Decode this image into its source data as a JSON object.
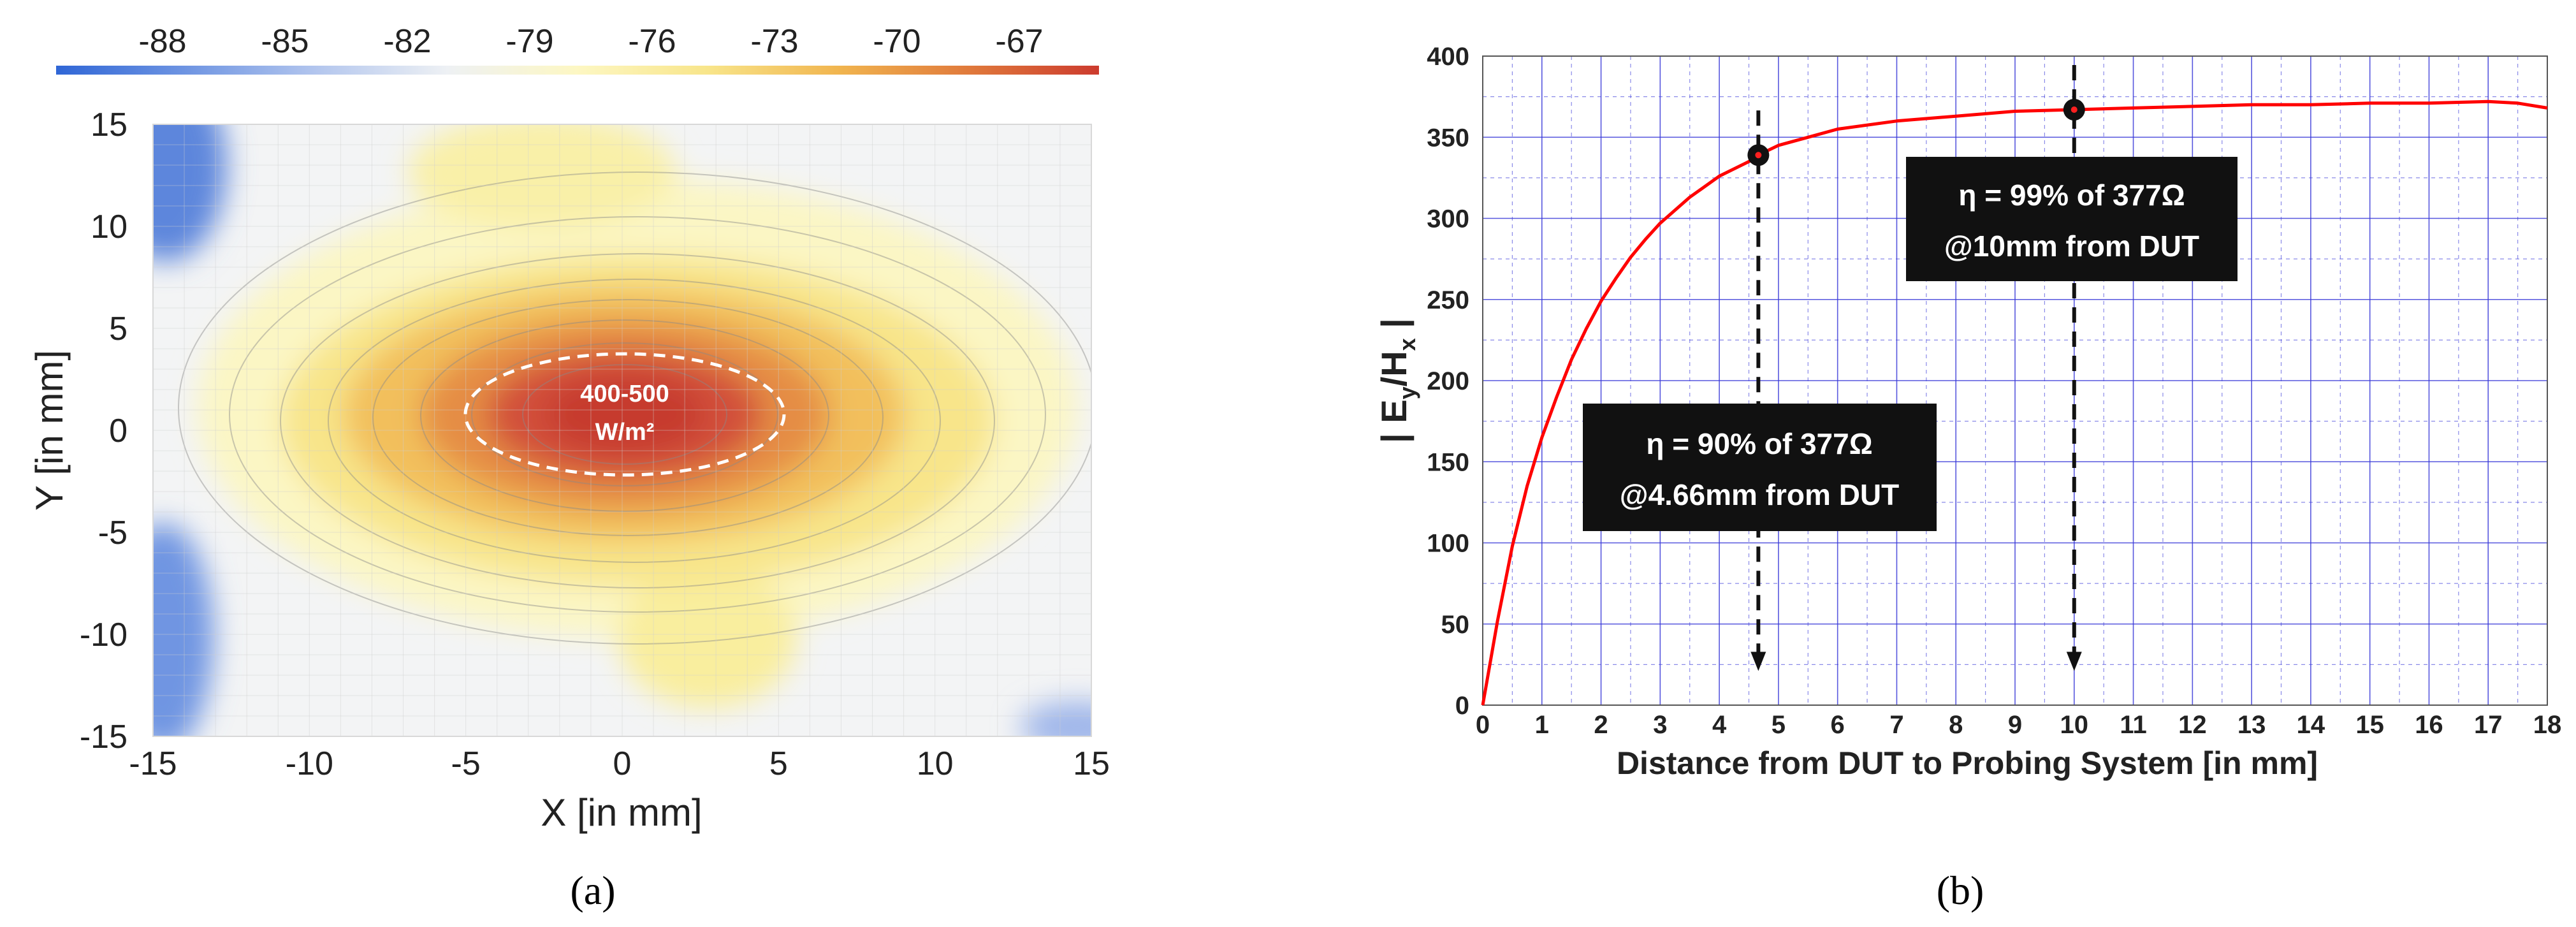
{
  "chart_data": [
    {
      "type": "heatmap",
      "panel_label": "(a)",
      "title": "",
      "xlabel": "X [in mm]",
      "ylabel": "Y [in mm]",
      "xlim": [
        -15,
        15
      ],
      "ylim": [
        -15,
        15
      ],
      "x_ticks": [
        "-15",
        "-10",
        "-5",
        "0",
        "5",
        "10",
        "15"
      ],
      "y_ticks": [
        "15",
        "10",
        "5",
        "0",
        "-5",
        "-10",
        "-15"
      ],
      "colorbar_ticks": [
        "-88",
        "-85",
        "-82",
        "-79",
        "-76",
        "-73",
        "-70",
        "-67"
      ],
      "colorbar_colors": [
        "#2f66d6",
        "#6f95e2",
        "#b3c6ee",
        "#eef1f4",
        "#fdf7c3",
        "#f8e58a",
        "#f1b54f",
        "#e07a3c",
        "#cc3b2e"
      ],
      "grid": true,
      "hotspot": {
        "center": [
          0,
          0.8
        ],
        "semi_axes": [
          5.2,
          2.9
        ],
        "annotation_line1": "400-500",
        "annotation_line2": "W/m²"
      }
    },
    {
      "type": "line",
      "panel_label": "(b)",
      "xlabel": "Distance from DUT to Probing System [in mm]",
      "ylabel_main": "| E",
      "ylabel_sub1": "y",
      "ylabel_mid": "/H",
      "ylabel_sub2": "x",
      "ylabel_end": " |",
      "xlim": [
        0,
        18
      ],
      "ylim": [
        0,
        400
      ],
      "x_ticks": [
        "0",
        "1",
        "2",
        "3",
        "4",
        "5",
        "6",
        "7",
        "8",
        "9",
        "10",
        "11",
        "12",
        "13",
        "14",
        "15",
        "16",
        "17",
        "18"
      ],
      "y_ticks": [
        "0",
        "50",
        "100",
        "150",
        "200",
        "250",
        "300",
        "350",
        "400"
      ],
      "grid_minor_x": 0.5,
      "grid_minor_y": 25,
      "line_color": "#ff0000",
      "grid_color": "#3a3ad8",
      "series": [
        {
          "name": "|Ey/Hx|",
          "x": [
            0,
            0.25,
            0.5,
            0.75,
            1,
            1.25,
            1.5,
            1.75,
            2,
            2.25,
            2.5,
            2.75,
            3,
            3.5,
            4,
            4.5,
            4.66,
            5,
            5.5,
            6,
            7,
            8,
            9,
            10,
            11,
            12,
            13,
            14,
            15,
            16,
            17,
            17.5,
            18
          ],
          "values": [
            0,
            52,
            98,
            135,
            165,
            190,
            213,
            232,
            249,
            263,
            276,
            287,
            297,
            313,
            326,
            335,
            339,
            345,
            350,
            355,
            360,
            363,
            366,
            367,
            368,
            369,
            370,
            370,
            371,
            371,
            372,
            371,
            368
          ]
        }
      ],
      "markers": [
        {
          "x": 4.66,
          "y": 339
        },
        {
          "x": 10,
          "y": 367
        }
      ],
      "annotations": [
        {
          "line1": "η = 90% of 377Ω",
          "line2": "@4.66mm from DUT",
          "anchor_x": 4.66
        },
        {
          "line1": "η = 99% of 377Ω",
          "line2": "@10mm from DUT",
          "anchor_x": 10
        }
      ]
    }
  ]
}
